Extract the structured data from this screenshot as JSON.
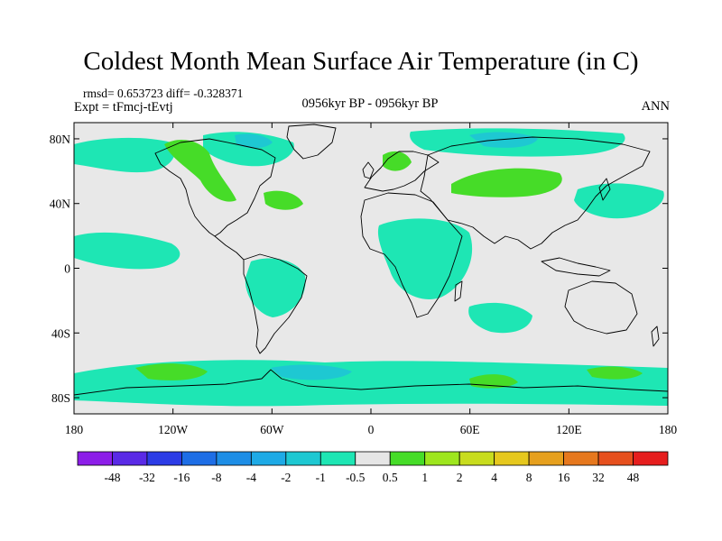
{
  "title": "Coldest Month Mean Surface Air Temperature (in C)",
  "stats_line": "rmsd= 0.653723 diff= -0.328371",
  "experiment_line": "Expt = tFmcj-tEvtj",
  "period_label": "0956kyr BP - 0956kyr BP",
  "season_label": "ANN",
  "map": {
    "projection": "cylindrical-equidistant",
    "lon_range": [
      -180,
      180
    ],
    "lat_range": [
      -90,
      90
    ],
    "lat_ticks": [
      {
        "lat": 80,
        "label": "80N"
      },
      {
        "lat": 40,
        "label": "40N"
      },
      {
        "lat": 0,
        "label": "0"
      },
      {
        "lat": -40,
        "label": "40S"
      },
      {
        "lat": -80,
        "label": "80S"
      }
    ],
    "lon_ticks": [
      {
        "lon": -180,
        "label": "180"
      },
      {
        "lon": -120,
        "label": "120W"
      },
      {
        "lon": -60,
        "label": "60W"
      },
      {
        "lon": 0,
        "label": "0"
      },
      {
        "lon": 60,
        "label": "60E"
      },
      {
        "lon": 120,
        "label": "120E"
      },
      {
        "lon": 180,
        "label": "180"
      }
    ],
    "background_color": "#e8e8e8",
    "coastline_color": "#000000"
  },
  "colorbar": {
    "colors": [
      "#8c1ee8",
      "#5a2ae6",
      "#2c3ce6",
      "#1e6ee6",
      "#1e8ee6",
      "#1eaae6",
      "#1ec8d2",
      "#1ee6b4",
      "#e6e6e6",
      "#46dc28",
      "#9ee61e",
      "#c8dc1e",
      "#e6c81e",
      "#e6a01e",
      "#e6781e",
      "#e6501e",
      "#e61e1e"
    ],
    "labels": [
      "-48",
      "-32",
      "-16",
      "-8",
      "-4",
      "-2",
      "-1",
      "-0.5",
      "0.5",
      "1",
      "2",
      "4",
      "8",
      "16",
      "32",
      "48"
    ]
  }
}
